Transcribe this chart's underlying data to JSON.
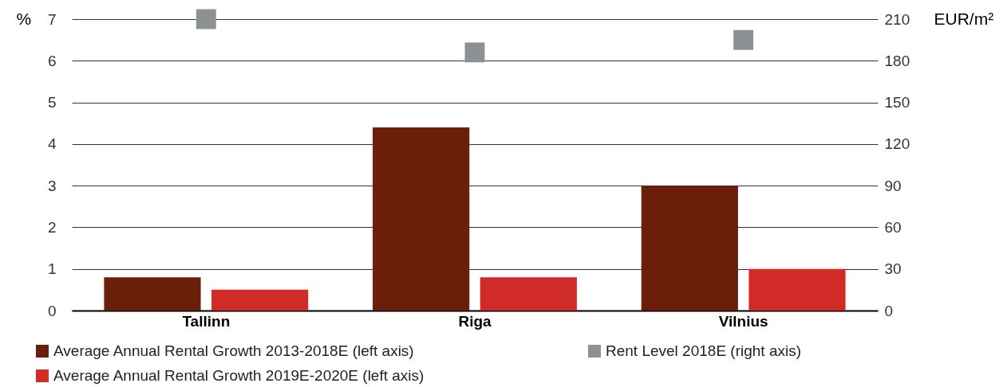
{
  "chart_data": {
    "type": "bar",
    "categories": [
      "Tallinn",
      "Riga",
      "Vilnius"
    ],
    "ylabel": "%",
    "y2label": "EUR/m²",
    "ylim": [
      0,
      7
    ],
    "yticks": [
      0,
      1,
      2,
      3,
      4,
      5,
      6,
      7
    ],
    "y2lim": [
      0,
      210
    ],
    "y2ticks": [
      0,
      30,
      60,
      90,
      120,
      150,
      180,
      210
    ],
    "grid": "y",
    "legend": "bottom",
    "series": [
      {
        "name": "Average Annual Rental Growth 2013-2018E (left axis)",
        "color": "#6b1f0a",
        "values": [
          0.8,
          4.4,
          3.0
        ]
      },
      {
        "name": "Average Annual Rental Growth 2019E-2020E (left axis)",
        "color": "#d12b27",
        "values": [
          0.5,
          0.8,
          1.0
        ]
      },
      {
        "name": "Rent Level 2018E (right axis)",
        "type": "scatter",
        "axis": "y2",
        "marker": "square",
        "color": "#8c9294",
        "values": [
          210,
          186,
          195
        ]
      }
    ]
  }
}
